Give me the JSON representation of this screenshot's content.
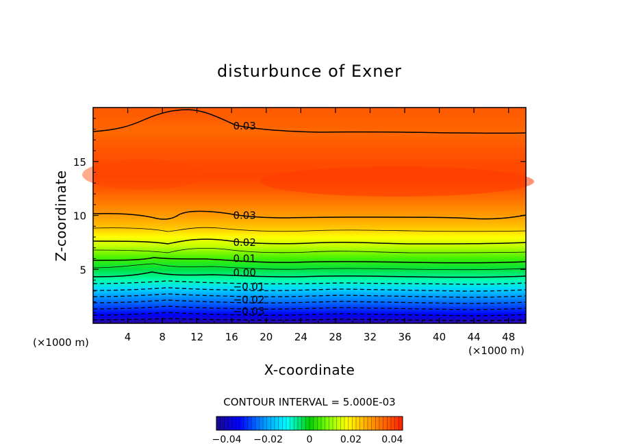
{
  "chart_data": {
    "type": "heatmap",
    "title": "disturbunce of Exner",
    "xlabel": "X-coordinate",
    "ylabel": "Z-coordinate",
    "x_unit": "(×1000 m)",
    "z_unit": "(×1000 m)",
    "xlim": [
      0,
      50
    ],
    "ylim": [
      0,
      20
    ],
    "xticks": [
      "4",
      "8",
      "12",
      "16",
      "20",
      "24",
      "28",
      "32",
      "36",
      "40",
      "44",
      "48"
    ],
    "yticks": [
      "5",
      "10",
      "15"
    ],
    "contour_interval_label": "CONTOUR INTERVAL = 5.000E-03",
    "colorbar": {
      "range": [
        -0.045,
        0.045
      ],
      "tick_labels": [
        "−0.04",
        "−0.02",
        "0",
        "0.02",
        "0.04"
      ],
      "tick_values": [
        -0.04,
        -0.02,
        0,
        0.02,
        0.04
      ]
    },
    "contour_labels": [
      {
        "text": "0.03",
        "x": 17.5,
        "z": 18.3
      },
      {
        "text": "0.03",
        "x": 17.5,
        "z": 10.0
      },
      {
        "text": "0.02",
        "x": 17.5,
        "z": 7.5
      },
      {
        "text": "0.01",
        "x": 17.5,
        "z": 6.0
      },
      {
        "text": "0.00",
        "x": 17.5,
        "z": 4.7
      },
      {
        "text": "−0.01",
        "x": 18.0,
        "z": 3.4
      },
      {
        "text": "−0.02",
        "x": 18.0,
        "z": 2.2
      },
      {
        "text": "−0.03",
        "x": 18.0,
        "z": 1.1
      }
    ]
  },
  "colors": {
    "background": "#ffffff",
    "axis": "#000000",
    "colormap": [
      "#1a0a8c",
      "#0000ff",
      "#0080ff",
      "#00ffff",
      "#00e060",
      "#00d000",
      "#a0ff00",
      "#ffff00",
      "#ffc000",
      "#ff7a00",
      "#ff4a00",
      "#ff2a00"
    ]
  }
}
